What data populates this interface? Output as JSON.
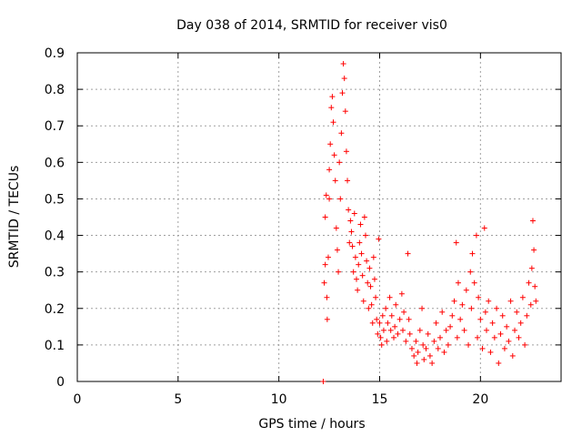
{
  "chart_data": {
    "type": "scatter",
    "title": "Day 038 of 2014, SRMTID for receiver vis0",
    "xlabel": "GPS time / hours",
    "ylabel": "SRMTID / TECUs",
    "xlim": [
      0,
      24
    ],
    "ylim": [
      0,
      0.9
    ],
    "xticks": [
      0,
      5,
      10,
      15,
      20
    ],
    "yticks": [
      0,
      0.1,
      0.2,
      0.3,
      0.4,
      0.5,
      0.6,
      0.7,
      0.8,
      0.9
    ],
    "xtick_labels": [
      "0",
      "5",
      "10",
      "15",
      "20"
    ],
    "ytick_labels": [
      "0",
      "0.1",
      "0.2",
      "0.3",
      "0.4",
      "0.5",
      "0.6",
      "0.7",
      "0.8",
      "0.9"
    ],
    "grid": true,
    "marker": "+",
    "color": "#ff0000",
    "series": [
      {
        "name": "vis0",
        "points": [
          [
            12.2,
            0.0
          ],
          [
            12.25,
            0.27
          ],
          [
            12.3,
            0.32
          ],
          [
            12.3,
            0.45
          ],
          [
            12.35,
            0.51
          ],
          [
            12.38,
            0.23
          ],
          [
            12.4,
            0.17
          ],
          [
            12.45,
            0.34
          ],
          [
            12.5,
            0.5
          ],
          [
            12.5,
            0.58
          ],
          [
            12.55,
            0.65
          ],
          [
            12.6,
            0.75
          ],
          [
            12.65,
            0.78
          ],
          [
            12.7,
            0.71
          ],
          [
            12.75,
            0.62
          ],
          [
            12.8,
            0.55
          ],
          [
            12.85,
            0.42
          ],
          [
            12.9,
            0.36
          ],
          [
            12.95,
            0.3
          ],
          [
            13.0,
            0.6
          ],
          [
            13.05,
            0.5
          ],
          [
            13.1,
            0.68
          ],
          [
            13.15,
            0.79
          ],
          [
            13.2,
            0.87
          ],
          [
            13.25,
            0.83
          ],
          [
            13.3,
            0.74
          ],
          [
            13.35,
            0.63
          ],
          [
            13.4,
            0.55
          ],
          [
            13.45,
            0.47
          ],
          [
            13.5,
            0.38
          ],
          [
            13.55,
            0.44
          ],
          [
            13.6,
            0.41
          ],
          [
            13.65,
            0.37
          ],
          [
            13.7,
            0.3
          ],
          [
            13.75,
            0.46
          ],
          [
            13.8,
            0.34
          ],
          [
            13.85,
            0.28
          ],
          [
            13.9,
            0.25
          ],
          [
            13.95,
            0.32
          ],
          [
            14.0,
            0.38
          ],
          [
            14.05,
            0.43
          ],
          [
            14.1,
            0.35
          ],
          [
            14.15,
            0.29
          ],
          [
            14.2,
            0.22
          ],
          [
            14.25,
            0.45
          ],
          [
            14.3,
            0.4
          ],
          [
            14.35,
            0.33
          ],
          [
            14.4,
            0.27
          ],
          [
            14.45,
            0.2
          ],
          [
            14.5,
            0.31
          ],
          [
            14.55,
            0.26
          ],
          [
            14.6,
            0.21
          ],
          [
            14.65,
            0.16
          ],
          [
            14.7,
            0.34
          ],
          [
            14.75,
            0.28
          ],
          [
            14.8,
            0.23
          ],
          [
            14.85,
            0.17
          ],
          [
            14.9,
            0.13
          ],
          [
            14.95,
            0.39
          ],
          [
            15.0,
            0.16
          ],
          [
            15.05,
            0.12
          ],
          [
            15.1,
            0.1
          ],
          [
            15.15,
            0.18
          ],
          [
            15.2,
            0.14
          ],
          [
            15.3,
            0.2
          ],
          [
            15.35,
            0.11
          ],
          [
            15.4,
            0.16
          ],
          [
            15.5,
            0.23
          ],
          [
            15.55,
            0.14
          ],
          [
            15.6,
            0.18
          ],
          [
            15.7,
            0.12
          ],
          [
            15.75,
            0.15
          ],
          [
            15.8,
            0.21
          ],
          [
            15.9,
            0.13
          ],
          [
            16.0,
            0.17
          ],
          [
            16.1,
            0.24
          ],
          [
            16.15,
            0.14
          ],
          [
            16.2,
            0.19
          ],
          [
            16.3,
            0.11
          ],
          [
            16.4,
            0.35
          ],
          [
            16.45,
            0.17
          ],
          [
            16.5,
            0.13
          ],
          [
            16.6,
            0.09
          ],
          [
            16.7,
            0.07
          ],
          [
            16.8,
            0.11
          ],
          [
            16.85,
            0.05
          ],
          [
            16.9,
            0.08
          ],
          [
            17.0,
            0.14
          ],
          [
            17.1,
            0.2
          ],
          [
            17.15,
            0.1
          ],
          [
            17.2,
            0.06
          ],
          [
            17.3,
            0.09
          ],
          [
            17.4,
            0.13
          ],
          [
            17.5,
            0.07
          ],
          [
            17.6,
            0.05
          ],
          [
            17.7,
            0.11
          ],
          [
            17.8,
            0.16
          ],
          [
            17.9,
            0.09
          ],
          [
            18.0,
            0.12
          ],
          [
            18.1,
            0.19
          ],
          [
            18.2,
            0.08
          ],
          [
            18.3,
            0.14
          ],
          [
            18.4,
            0.1
          ],
          [
            18.5,
            0.15
          ],
          [
            18.6,
            0.18
          ],
          [
            18.7,
            0.22
          ],
          [
            18.8,
            0.38
          ],
          [
            18.85,
            0.12
          ],
          [
            18.9,
            0.27
          ],
          [
            19.0,
            0.17
          ],
          [
            19.1,
            0.21
          ],
          [
            19.2,
            0.14
          ],
          [
            19.3,
            0.25
          ],
          [
            19.4,
            0.1
          ],
          [
            19.5,
            0.3
          ],
          [
            19.55,
            0.2
          ],
          [
            19.6,
            0.35
          ],
          [
            19.7,
            0.27
          ],
          [
            19.8,
            0.4
          ],
          [
            19.85,
            0.12
          ],
          [
            19.9,
            0.23
          ],
          [
            20.0,
            0.17
          ],
          [
            20.1,
            0.09
          ],
          [
            20.2,
            0.42
          ],
          [
            20.25,
            0.19
          ],
          [
            20.3,
            0.14
          ],
          [
            20.4,
            0.22
          ],
          [
            20.5,
            0.08
          ],
          [
            20.6,
            0.16
          ],
          [
            20.7,
            0.12
          ],
          [
            20.8,
            0.2
          ],
          [
            20.9,
            0.05
          ],
          [
            21.0,
            0.13
          ],
          [
            21.1,
            0.18
          ],
          [
            21.2,
            0.09
          ],
          [
            21.3,
            0.15
          ],
          [
            21.4,
            0.11
          ],
          [
            21.5,
            0.22
          ],
          [
            21.6,
            0.07
          ],
          [
            21.7,
            0.14
          ],
          [
            21.8,
            0.19
          ],
          [
            21.9,
            0.12
          ],
          [
            22.0,
            0.16
          ],
          [
            22.1,
            0.23
          ],
          [
            22.2,
            0.1
          ],
          [
            22.3,
            0.18
          ],
          [
            22.4,
            0.27
          ],
          [
            22.5,
            0.21
          ],
          [
            22.55,
            0.31
          ],
          [
            22.6,
            0.44
          ],
          [
            22.65,
            0.36
          ],
          [
            22.7,
            0.26
          ],
          [
            22.75,
            0.22
          ]
        ]
      }
    ]
  }
}
